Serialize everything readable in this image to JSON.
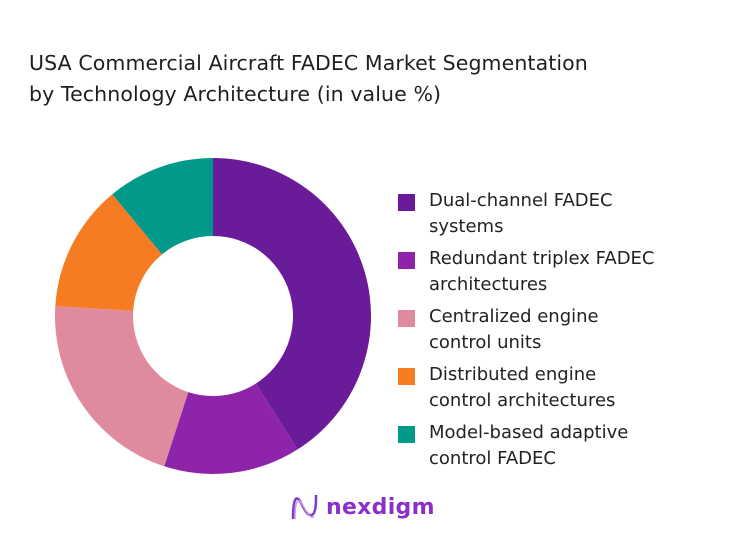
{
  "chart_data": {
    "type": "pie",
    "donut": true,
    "title": "USA Commercial Aircraft FADEC Market Segmentation by Technology Architecture (in value %)",
    "title_lines": [
      "USA Commercial Aircraft FADEC Market Segmentation",
      "by Technology Architecture (in value %)"
    ],
    "legend_position": "right",
    "slices": [
      {
        "label": "Dual-channel FADEC systems",
        "lines": [
          "Dual-channel FADEC",
          "systems"
        ],
        "value": 41,
        "color": "#6a1b9a"
      },
      {
        "label": "Redundant triplex FADEC architectures",
        "lines": [
          "Redundant triplex FADEC",
          "architectures"
        ],
        "value": 14,
        "color": "#8e24aa"
      },
      {
        "label": "Centralized engine control units",
        "lines": [
          "Centralized engine",
          "control units"
        ],
        "value": 21,
        "color": "#e08aa0"
      },
      {
        "label": "Distributed engine control architectures",
        "lines": [
          "Distributed engine",
          "control architectures"
        ],
        "value": 13,
        "color": "#f57c22"
      },
      {
        "label": "Model-based adaptive control FADEC",
        "lines": [
          "Model-based adaptive",
          "control FADEC"
        ],
        "value": 11,
        "color": "#00998a"
      }
    ]
  },
  "brand": {
    "name": "nexdigm",
    "color": "#8b2fc9"
  }
}
